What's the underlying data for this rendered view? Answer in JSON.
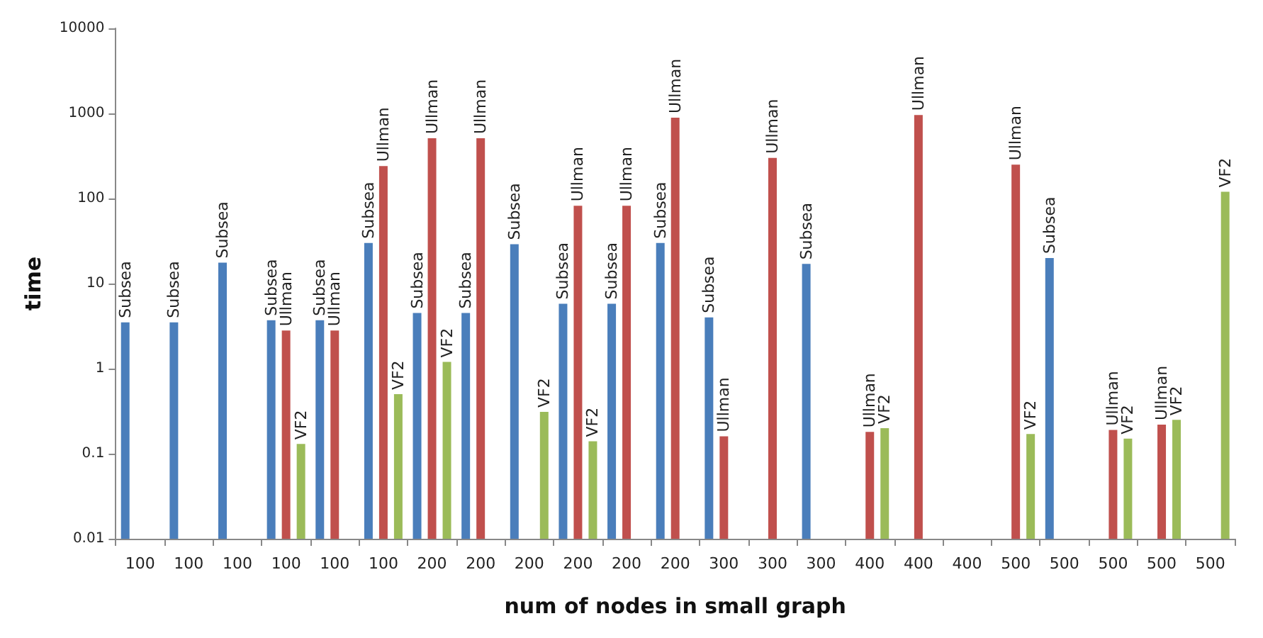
{
  "chart_data": {
    "type": "bar",
    "xlabel": "num of nodes in small graph",
    "ylabel": "time",
    "categories": [
      "100",
      "100",
      "100",
      "100",
      "100",
      "100",
      "200",
      "200",
      "200",
      "200",
      "200",
      "200",
      "300",
      "300",
      "300",
      "400",
      "400",
      "400",
      "500",
      "500",
      "500",
      "500",
      "500"
    ],
    "series": [
      {
        "name": "Subsea",
        "color": "#4a7ebb",
        "values": [
          3.5,
          3.5,
          17.6,
          3.7,
          3.7,
          30,
          4.5,
          4.5,
          29,
          5.8,
          5.8,
          30,
          4.0,
          null,
          17,
          null,
          null,
          null,
          null,
          20,
          null,
          null,
          null
        ]
      },
      {
        "name": "Ullman",
        "color": "#c0504d",
        "values": [
          null,
          null,
          null,
          2.8,
          2.8,
          240,
          510,
          510,
          null,
          82,
          82,
          890,
          0.16,
          300,
          null,
          0.18,
          960,
          null,
          250,
          null,
          0.19,
          0.22,
          null
        ]
      },
      {
        "name": "VF2",
        "color": "#9bbb59",
        "values": [
          null,
          null,
          null,
          0.13,
          null,
          0.5,
          1.2,
          null,
          0.31,
          0.14,
          null,
          null,
          null,
          null,
          null,
          0.2,
          null,
          null,
          0.17,
          null,
          0.15,
          0.25,
          120
        ]
      }
    ],
    "log": "y",
    "ylim": [
      0.01,
      10000
    ],
    "yticks": [
      0.01,
      0.1,
      1,
      10,
      100,
      1000,
      10000
    ],
    "grid": false,
    "legend": false
  }
}
